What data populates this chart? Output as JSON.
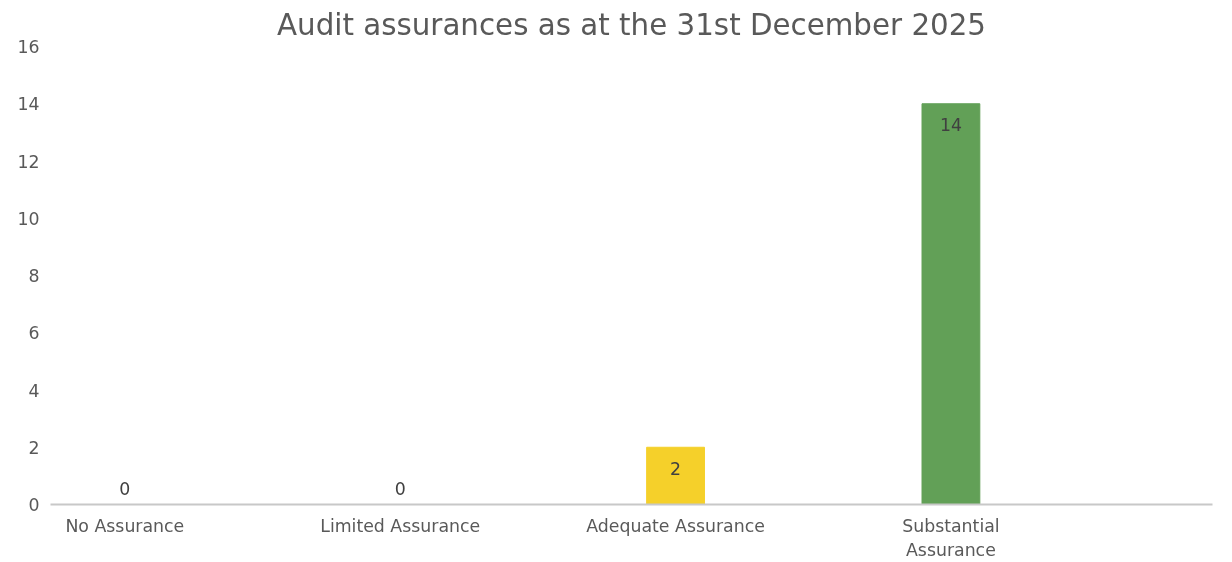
{
  "chart_data": {
    "type": "bar",
    "title": "Audit assurances as at the 31st December 2025",
    "categories": [
      "No Assurance",
      "Limited Assurance",
      "Adequate Assurance",
      "Substantial\nAssurance"
    ],
    "values": [
      0,
      0,
      2,
      14
    ],
    "colors": [
      "#c0392b",
      "#e67e22",
      "#f5d02a",
      "#62a057"
    ],
    "ylim": [
      0,
      16
    ],
    "yticks": [
      0,
      2,
      4,
      6,
      8,
      10,
      12,
      14,
      16
    ],
    "data_labels": true,
    "grid": false
  }
}
